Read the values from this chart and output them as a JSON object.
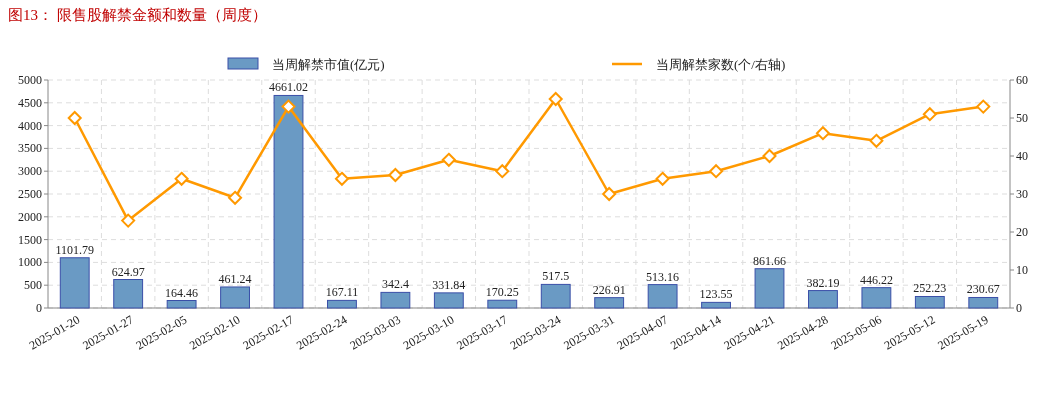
{
  "chart_data": {
    "type": "bar",
    "title": "图13：  限售股解禁金额和数量（周度）",
    "categories": [
      "2025-01-20",
      "2025-01-27",
      "2025-02-05",
      "2025-02-10",
      "2025-02-17",
      "2025-02-24",
      "2025-03-03",
      "2025-03-10",
      "2025-03-17",
      "2025-03-24",
      "2025-03-31",
      "2025-04-07",
      "2025-04-14",
      "2025-04-21",
      "2025-04-28",
      "2025-05-06",
      "2025-05-12",
      "2025-05-19"
    ],
    "series": [
      {
        "name": "当周解禁市值(亿元)",
        "color": "#6a9ac4",
        "values": [
          1101.79,
          624.97,
          164.46,
          461.24,
          4661.02,
          167.11,
          342.4,
          331.84,
          170.25,
          517.5,
          226.91,
          513.16,
          123.55,
          861.66,
          382.19,
          446.22,
          252.23,
          230.67
        ],
        "value_labels": [
          "1101.79",
          "624.97",
          "164.46",
          "461.24",
          "4661.02",
          "167.11",
          "342.4",
          "331.84",
          "170.25",
          "517.5",
          "226.91",
          "513.16",
          "123.55",
          "861.66",
          "382.19",
          "446.22",
          "252.23",
          "230.67"
        ]
      },
      {
        "name": "当周解禁家数(个/右轴)",
        "type": "line",
        "axis": "y2",
        "color": "#ff9900",
        "marker": "diamond",
        "values": [
          50,
          23,
          34,
          29,
          53,
          34,
          35,
          39,
          36,
          55,
          30,
          34,
          36,
          40,
          46,
          44,
          51,
          53
        ]
      }
    ],
    "ylim": [
      0,
      5000
    ],
    "yticks": [
      0,
      500,
      1000,
      1500,
      2000,
      2500,
      3000,
      3500,
      4000,
      4500,
      5000
    ],
    "y2lim": [
      0,
      60
    ],
    "y2ticks": [
      0,
      10,
      20,
      30,
      40,
      50,
      60
    ],
    "grid": true,
    "legend": "top"
  }
}
